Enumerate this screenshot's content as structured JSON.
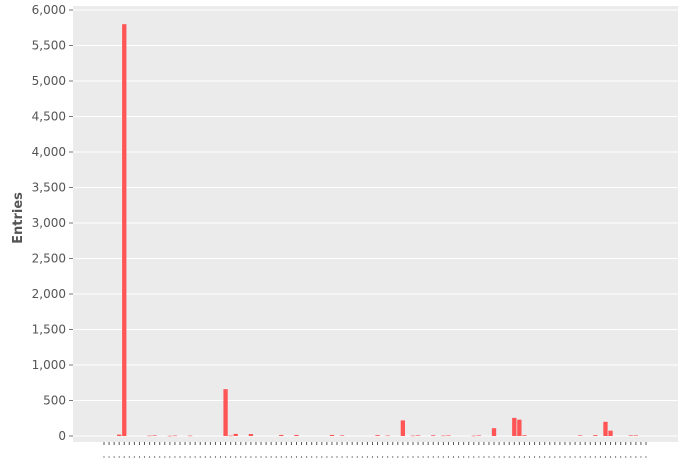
{
  "chart_data": {
    "type": "bar",
    "title": "",
    "xlabel": "",
    "ylabel": "Entries",
    "ylim": [
      0,
      6000
    ],
    "yticks": [
      0,
      500,
      1000,
      1500,
      2000,
      2500,
      3000,
      3500,
      4000,
      4500,
      5000,
      5500,
      6000
    ],
    "ytick_labels": [
      "0",
      "500",
      "1,000",
      "1,500",
      "2,000",
      "2,500",
      "3,000",
      "3,500",
      "4,000",
      "4,500",
      "5,000",
      "5,500",
      "6,000"
    ],
    "grid": true,
    "legend": "none",
    "x_tick_labels_visible": false,
    "colors": {
      "bar": "#ff5555",
      "plot_background": "#ebebeb",
      "gridline": "#ffffff",
      "text": "#555555"
    },
    "values": [
      0,
      0,
      0,
      20,
      5800,
      0,
      0,
      0,
      0,
      5,
      8,
      0,
      0,
      3,
      6,
      0,
      0,
      5,
      0,
      0,
      0,
      0,
      0,
      0,
      660,
      5,
      30,
      0,
      0,
      28,
      0,
      0,
      0,
      0,
      0,
      15,
      0,
      0,
      15,
      0,
      0,
      0,
      0,
      0,
      0,
      15,
      0,
      8,
      0,
      0,
      0,
      0,
      0,
      0,
      12,
      0,
      6,
      0,
      0,
      220,
      0,
      5,
      8,
      0,
      0,
      10,
      0,
      5,
      8,
      0,
      0,
      0,
      0,
      4,
      8,
      0,
      0,
      110,
      0,
      0,
      0,
      255,
      230,
      10,
      0,
      0,
      0,
      0,
      0,
      0,
      0,
      0,
      0,
      0,
      8,
      0,
      0,
      12,
      0,
      200,
      75,
      0,
      0,
      0,
      8,
      8,
      0,
      0
    ]
  }
}
